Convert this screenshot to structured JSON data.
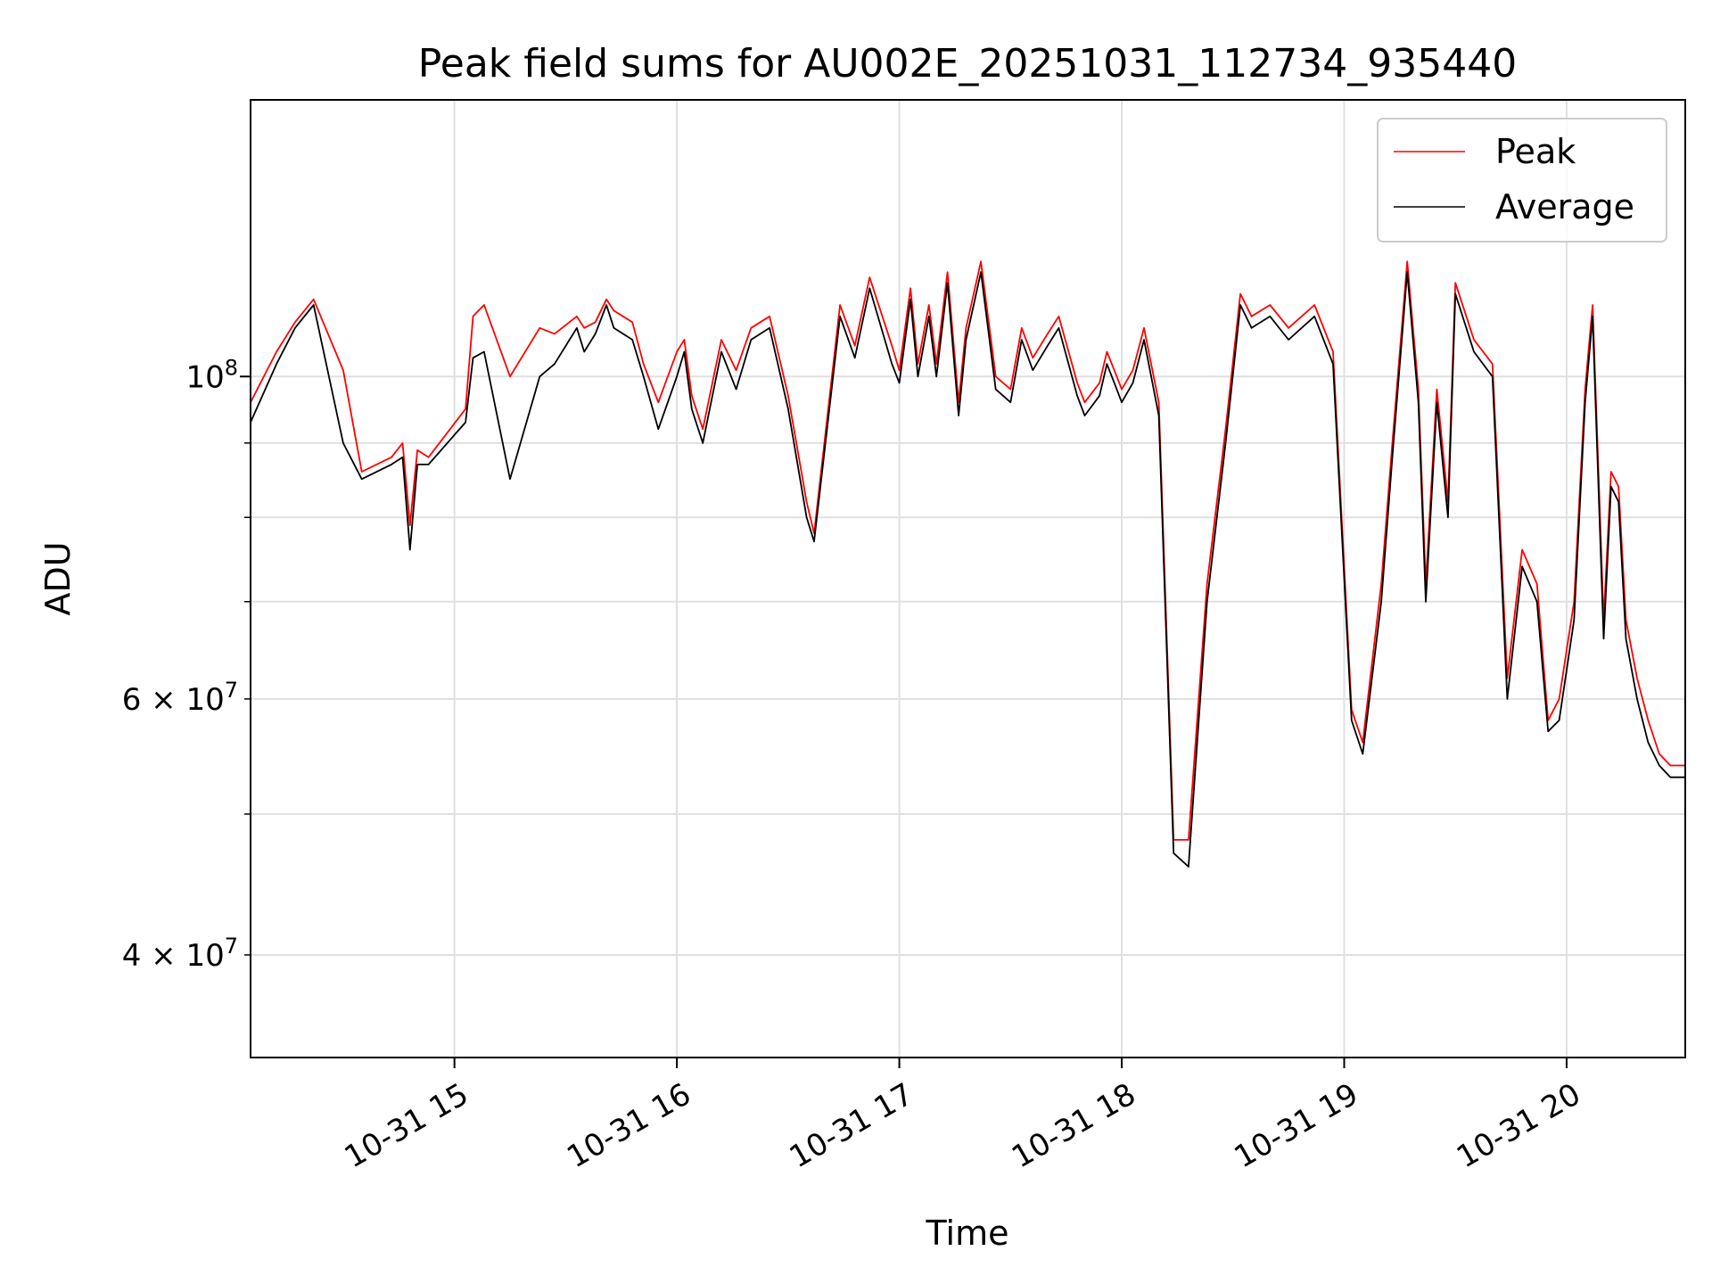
{
  "chart_data": {
    "type": "line",
    "title": "Peak field sums for AU002E_20251031_112734_935440",
    "xlabel": "Time",
    "ylabel": "ADU",
    "y_scale": "log",
    "ylim": [
      34000000,
      155000000
    ],
    "xlim": [
      "10-31 14:05",
      "10-31 20:32"
    ],
    "grid": true,
    "legend_position": "top-right",
    "x_ticks": [
      {
        "value": "10-31 15:00",
        "label": "10-31 15"
      },
      {
        "value": "10-31 16:00",
        "label": "10-31 16"
      },
      {
        "value": "10-31 17:00",
        "label": "10-31 17"
      },
      {
        "value": "10-31 18:00",
        "label": "10-31 18"
      },
      {
        "value": "10-31 19:00",
        "label": "10-31 19"
      },
      {
        "value": "10-31 20:00",
        "label": "10-31 20"
      }
    ],
    "y_ticks_major": [
      {
        "value": 100000000,
        "base": "10",
        "exp": "8"
      }
    ],
    "y_ticks_minor": [
      {
        "value": 40000000,
        "mant": "4",
        "exp": "7"
      },
      {
        "value": 50000000,
        "mant": "",
        "exp": ""
      },
      {
        "value": 60000000,
        "mant": "6",
        "exp": "7"
      },
      {
        "value": 70000000,
        "mant": "",
        "exp": ""
      },
      {
        "value": 80000000,
        "mant": "",
        "exp": ""
      },
      {
        "value": 90000000,
        "mant": "",
        "exp": ""
      }
    ],
    "series": [
      {
        "name": "Peak",
        "color": "#ff0000",
        "points": [
          [
            "10-31 14:05",
            96
          ],
          [
            "10-31 14:12",
            104
          ],
          [
            "10-31 14:17",
            109
          ],
          [
            "10-31 14:22",
            113
          ],
          [
            "10-31 14:30",
            101
          ],
          [
            "10-31 14:35",
            86
          ],
          [
            "10-31 14:43",
            88
          ],
          [
            "10-31 14:46",
            90
          ],
          [
            "10-31 14:48",
            79
          ],
          [
            "10-31 14:50",
            89
          ],
          [
            "10-31 14:53",
            88
          ],
          [
            "10-31 15:03",
            95
          ],
          [
            "10-31 15:05",
            110
          ],
          [
            "10-31 15:08",
            112
          ],
          [
            "10-31 15:15",
            100
          ],
          [
            "10-31 15:23",
            108
          ],
          [
            "10-31 15:27",
            107
          ],
          [
            "10-31 15:33",
            110
          ],
          [
            "10-31 15:35",
            108
          ],
          [
            "10-31 15:38",
            109
          ],
          [
            "10-31 15:41",
            113
          ],
          [
            "10-31 15:43",
            111
          ],
          [
            "10-31 15:48",
            109
          ],
          [
            "10-31 15:51",
            102
          ],
          [
            "10-31 15:55",
            96
          ],
          [
            "10-31 16:00",
            104
          ],
          [
            "10-31 16:02",
            106
          ],
          [
            "10-31 16:04",
            97
          ],
          [
            "10-31 16:07",
            92
          ],
          [
            "10-31 16:12",
            106
          ],
          [
            "10-31 16:16",
            101
          ],
          [
            "10-31 16:20",
            108
          ],
          [
            "10-31 16:25",
            110
          ],
          [
            "10-31 16:30",
            97
          ],
          [
            "10-31 16:35",
            82
          ],
          [
            "10-31 16:37",
            78
          ],
          [
            "10-31 16:44",
            112
          ],
          [
            "10-31 16:48",
            105
          ],
          [
            "10-31 16:52",
            117
          ],
          [
            "10-31 16:58",
            105
          ],
          [
            "10-31 17:00",
            101
          ],
          [
            "10-31 17:03",
            115
          ],
          [
            "10-31 17:05",
            102
          ],
          [
            "10-31 17:08",
            112
          ],
          [
            "10-31 17:10",
            102
          ],
          [
            "10-31 17:13",
            118
          ],
          [
            "10-31 17:16",
            96
          ],
          [
            "10-31 17:18",
            108
          ],
          [
            "10-31 17:22",
            120
          ],
          [
            "10-31 17:26",
            100
          ],
          [
            "10-31 17:30",
            98
          ],
          [
            "10-31 17:33",
            108
          ],
          [
            "10-31 17:36",
            103
          ],
          [
            "10-31 17:40",
            107
          ],
          [
            "10-31 17:43",
            110
          ],
          [
            "10-31 17:48",
            99
          ],
          [
            "10-31 17:50",
            96
          ],
          [
            "10-31 17:54",
            99
          ],
          [
            "10-31 17:56",
            104
          ],
          [
            "10-31 17:58",
            101
          ],
          [
            "10-31 18:00",
            98
          ],
          [
            "10-31 18:03",
            101
          ],
          [
            "10-31 18:06",
            108
          ],
          [
            "10-31 18:10",
            96
          ],
          [
            "10-31 18:14",
            48
          ],
          [
            "10-31 18:18",
            48
          ],
          [
            "10-31 18:23",
            72
          ],
          [
            "10-31 18:28",
            92
          ],
          [
            "10-31 18:32",
            114
          ],
          [
            "10-31 18:35",
            110
          ],
          [
            "10-31 18:40",
            112
          ],
          [
            "10-31 18:45",
            108
          ],
          [
            "10-31 18:52",
            112
          ],
          [
            "10-31 18:57",
            104
          ],
          [
            "10-31 19:02",
            59
          ],
          [
            "10-31 19:05",
            56
          ],
          [
            "10-31 19:10",
            72
          ],
          [
            "10-31 19:13",
            90
          ],
          [
            "10-31 19:17",
            120
          ],
          [
            "10-31 19:20",
            98
          ],
          [
            "10-31 19:22",
            72
          ],
          [
            "10-31 19:25",
            98
          ],
          [
            "10-31 19:28",
            82
          ],
          [
            "10-31 19:30",
            116
          ],
          [
            "10-31 19:35",
            106
          ],
          [
            "10-31 19:40",
            102
          ],
          [
            "10-31 19:44",
            62
          ],
          [
            "10-31 19:48",
            76
          ],
          [
            "10-31 19:52",
            72
          ],
          [
            "10-31 19:55",
            58
          ],
          [
            "10-31 19:58",
            60
          ],
          [
            "10-31 20:02",
            70
          ],
          [
            "10-31 20:05",
            98
          ],
          [
            "10-31 20:07",
            112
          ],
          [
            "10-31 20:10",
            68
          ],
          [
            "10-31 20:12",
            86
          ],
          [
            "10-31 20:14",
            84
          ],
          [
            "10-31 20:16",
            68
          ],
          [
            "10-31 20:19",
            62
          ],
          [
            "10-31 20:22",
            58
          ],
          [
            "10-31 20:25",
            55
          ],
          [
            "10-31 20:28",
            54
          ],
          [
            "10-31 20:32",
            54
          ]
        ]
      },
      {
        "name": "Average",
        "color": "#000000",
        "points": [
          [
            "10-31 14:05",
            93
          ],
          [
            "10-31 14:12",
            102
          ],
          [
            "10-31 14:17",
            108
          ],
          [
            "10-31 14:22",
            112
          ],
          [
            "10-31 14:30",
            90
          ],
          [
            "10-31 14:35",
            85
          ],
          [
            "10-31 14:43",
            87
          ],
          [
            "10-31 14:46",
            88
          ],
          [
            "10-31 14:48",
            76
          ],
          [
            "10-31 14:50",
            87
          ],
          [
            "10-31 14:53",
            87
          ],
          [
            "10-31 15:03",
            93
          ],
          [
            "10-31 15:05",
            103
          ],
          [
            "10-31 15:08",
            104
          ],
          [
            "10-31 15:15",
            85
          ],
          [
            "10-31 15:23",
            100
          ],
          [
            "10-31 15:27",
            102
          ],
          [
            "10-31 15:33",
            108
          ],
          [
            "10-31 15:35",
            104
          ],
          [
            "10-31 15:38",
            107
          ],
          [
            "10-31 15:41",
            112
          ],
          [
            "10-31 15:43",
            108
          ],
          [
            "10-31 15:48",
            106
          ],
          [
            "10-31 15:51",
            100
          ],
          [
            "10-31 15:55",
            92
          ],
          [
            "10-31 16:00",
            100
          ],
          [
            "10-31 16:02",
            104
          ],
          [
            "10-31 16:04",
            95
          ],
          [
            "10-31 16:07",
            90
          ],
          [
            "10-31 16:12",
            104
          ],
          [
            "10-31 16:16",
            98
          ],
          [
            "10-31 16:20",
            106
          ],
          [
            "10-31 16:25",
            108
          ],
          [
            "10-31 16:30",
            95
          ],
          [
            "10-31 16:35",
            80
          ],
          [
            "10-31 16:37",
            77
          ],
          [
            "10-31 16:44",
            110
          ],
          [
            "10-31 16:48",
            103
          ],
          [
            "10-31 16:52",
            115
          ],
          [
            "10-31 16:58",
            102
          ],
          [
            "10-31 17:00",
            99
          ],
          [
            "10-31 17:03",
            113
          ],
          [
            "10-31 17:05",
            100
          ],
          [
            "10-31 17:08",
            110
          ],
          [
            "10-31 17:10",
            100
          ],
          [
            "10-31 17:13",
            116
          ],
          [
            "10-31 17:16",
            94
          ],
          [
            "10-31 17:18",
            106
          ],
          [
            "10-31 17:22",
            118
          ],
          [
            "10-31 17:26",
            98
          ],
          [
            "10-31 17:30",
            96
          ],
          [
            "10-31 17:33",
            106
          ],
          [
            "10-31 17:36",
            101
          ],
          [
            "10-31 17:40",
            105
          ],
          [
            "10-31 17:43",
            108
          ],
          [
            "10-31 17:48",
            97
          ],
          [
            "10-31 17:50",
            94
          ],
          [
            "10-31 17:54",
            97
          ],
          [
            "10-31 17:56",
            102
          ],
          [
            "10-31 17:58",
            99
          ],
          [
            "10-31 18:00",
            96
          ],
          [
            "10-31 18:03",
            99
          ],
          [
            "10-31 18:06",
            106
          ],
          [
            "10-31 18:10",
            94
          ],
          [
            "10-31 18:14",
            47
          ],
          [
            "10-31 18:18",
            46
          ],
          [
            "10-31 18:23",
            70
          ],
          [
            "10-31 18:28",
            90
          ],
          [
            "10-31 18:32",
            112
          ],
          [
            "10-31 18:35",
            108
          ],
          [
            "10-31 18:40",
            110
          ],
          [
            "10-31 18:45",
            106
          ],
          [
            "10-31 18:52",
            110
          ],
          [
            "10-31 18:57",
            102
          ],
          [
            "10-31 19:02",
            58
          ],
          [
            "10-31 19:05",
            55
          ],
          [
            "10-31 19:10",
            70
          ],
          [
            "10-31 19:13",
            88
          ],
          [
            "10-31 19:17",
            118
          ],
          [
            "10-31 19:20",
            96
          ],
          [
            "10-31 19:22",
            70
          ],
          [
            "10-31 19:25",
            96
          ],
          [
            "10-31 19:28",
            80
          ],
          [
            "10-31 19:30",
            114
          ],
          [
            "10-31 19:35",
            104
          ],
          [
            "10-31 19:40",
            100
          ],
          [
            "10-31 19:44",
            60
          ],
          [
            "10-31 19:48",
            74
          ],
          [
            "10-31 19:52",
            70
          ],
          [
            "10-31 19:55",
            57
          ],
          [
            "10-31 19:58",
            58
          ],
          [
            "10-31 20:02",
            68
          ],
          [
            "10-31 20:05",
            96
          ],
          [
            "10-31 20:07",
            110
          ],
          [
            "10-31 20:10",
            66
          ],
          [
            "10-31 20:12",
            84
          ],
          [
            "10-31 20:14",
            82
          ],
          [
            "10-31 20:16",
            66
          ],
          [
            "10-31 20:19",
            60
          ],
          [
            "10-31 20:22",
            56
          ],
          [
            "10-31 20:25",
            54
          ],
          [
            "10-31 20:28",
            53
          ],
          [
            "10-31 20:32",
            53
          ]
        ]
      }
    ]
  }
}
